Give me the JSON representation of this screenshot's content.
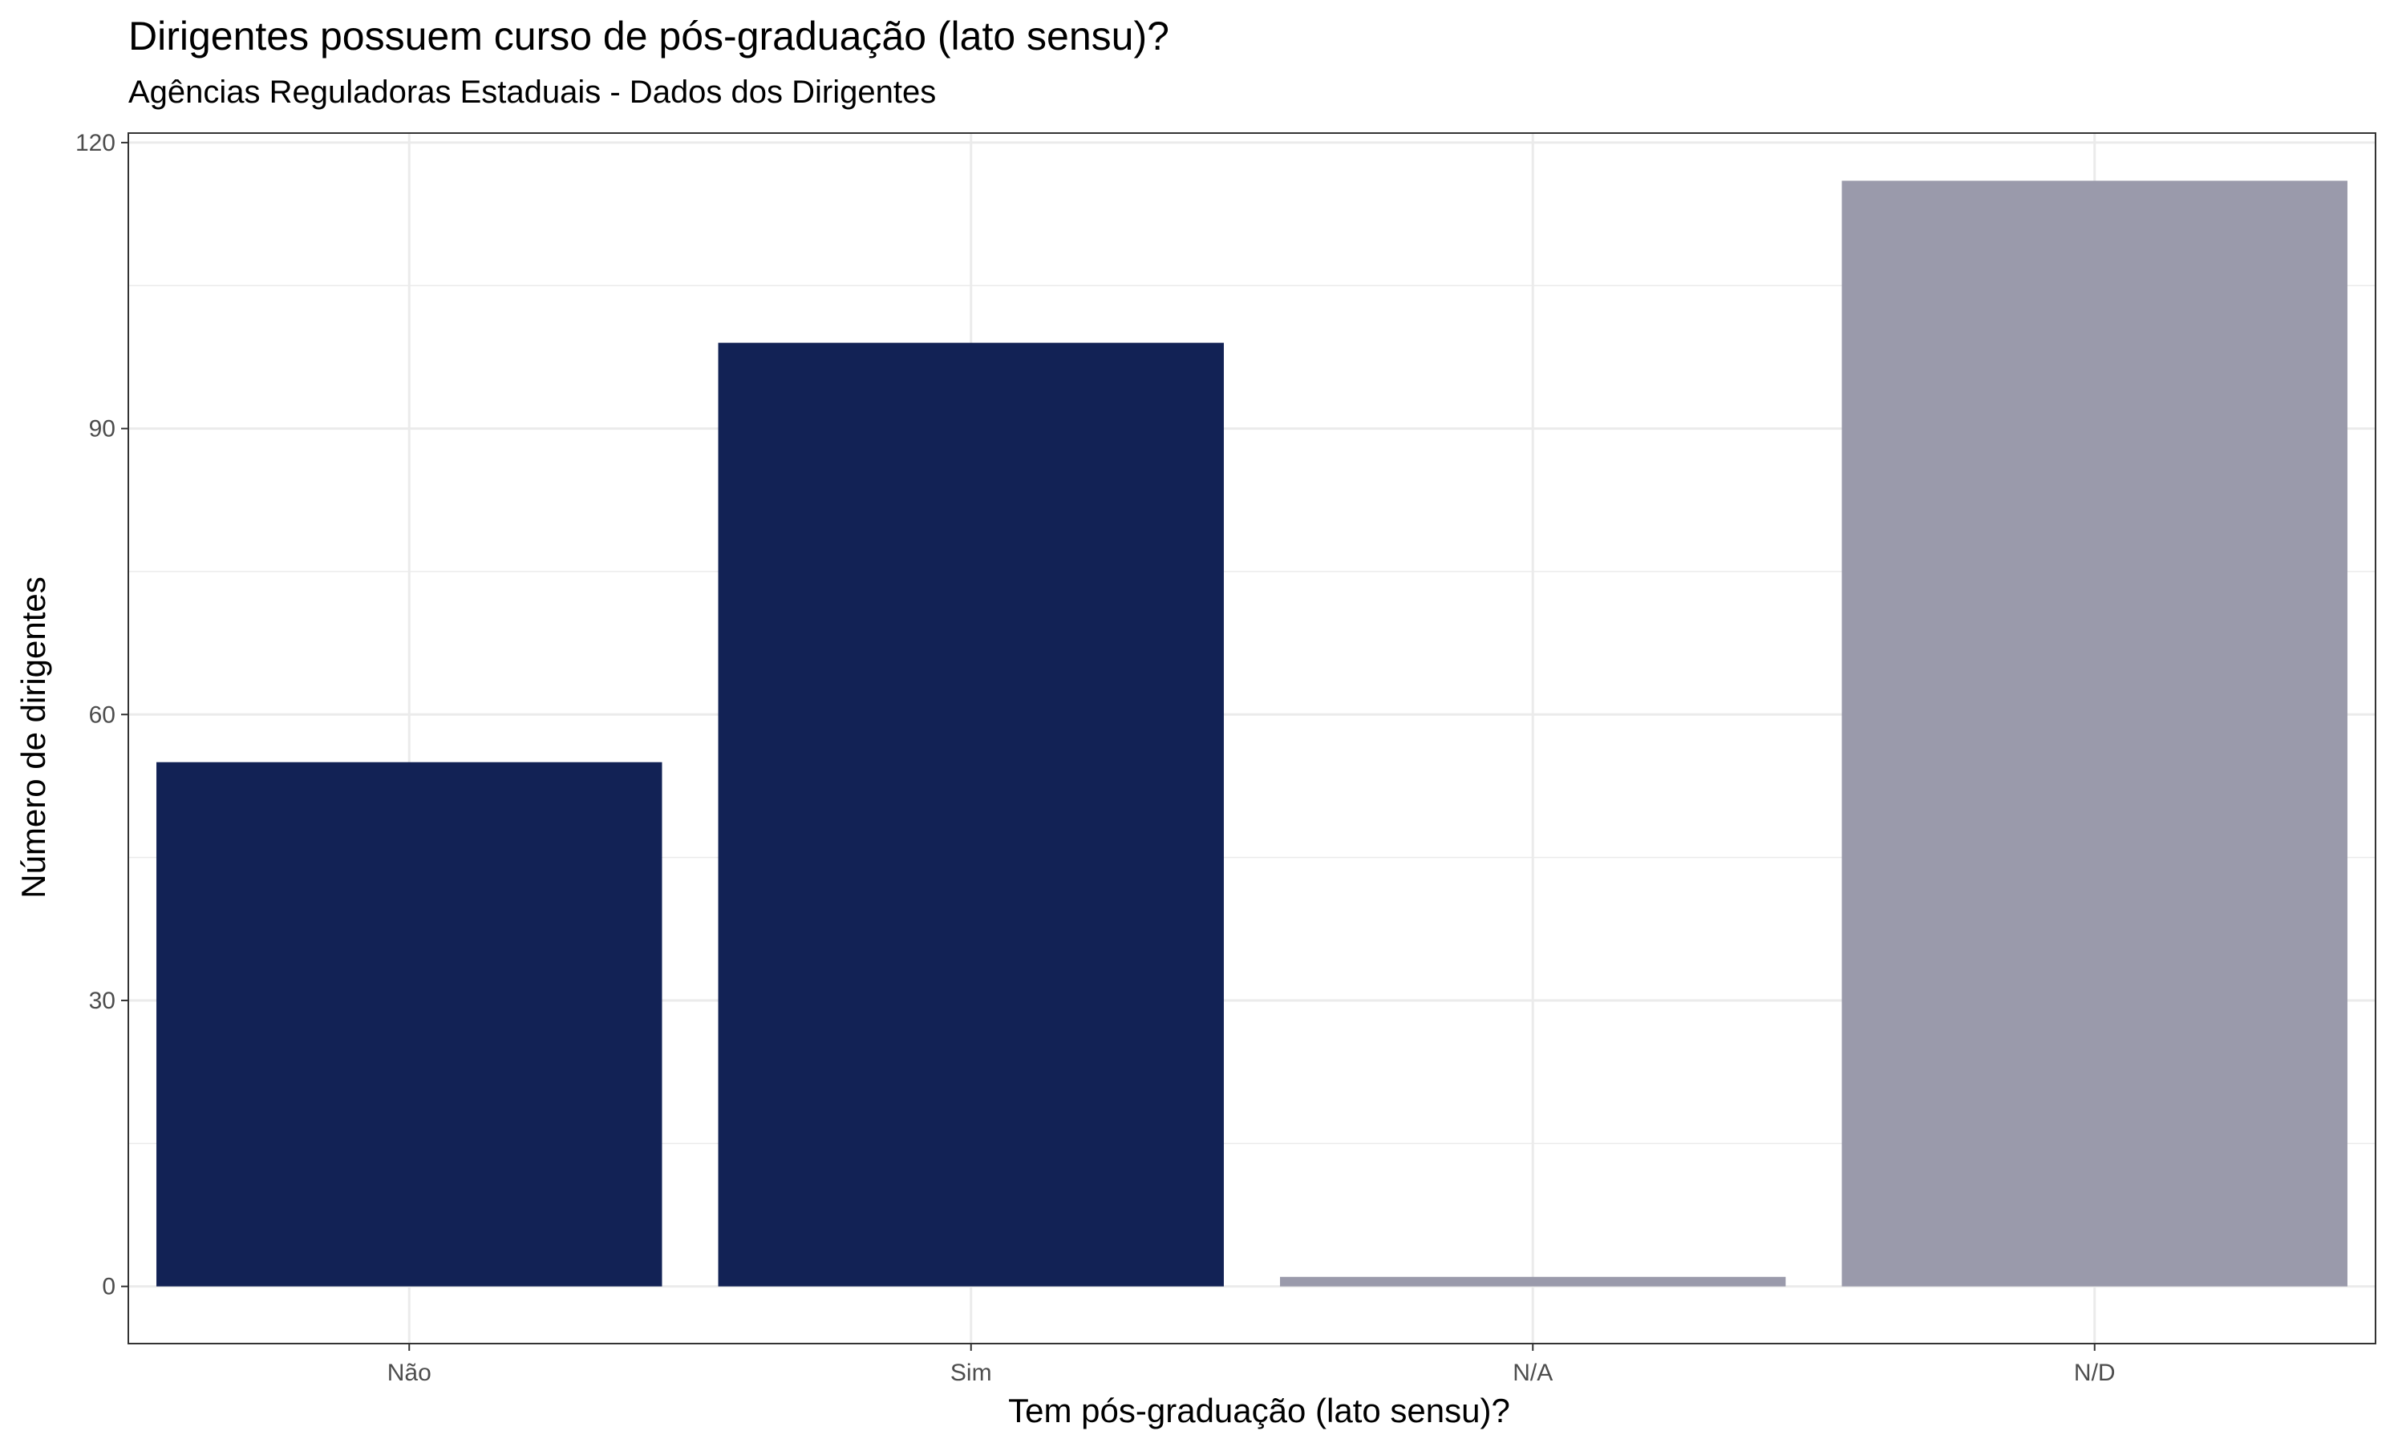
{
  "chart_data": {
    "type": "bar",
    "title": "Dirigentes possuem curso de pós-graduação (lato sensu)?",
    "subtitle": "Agências Reguladoras Estaduais - Dados dos Dirigentes",
    "xlabel": "Tem pós-graduação (lato sensu)?",
    "ylabel": "Número de dirigentes",
    "categories": [
      "Não",
      "Sim",
      "N/A",
      "N/D"
    ],
    "values": [
      55,
      99,
      1,
      116
    ],
    "bar_colors": [
      "#122255",
      "#122255",
      "#9a9aab",
      "#9a9aab"
    ],
    "ylim": [
      -6,
      121
    ],
    "yticks": [
      0,
      30,
      60,
      90,
      120
    ],
    "grid": true,
    "legend": "none",
    "background": "#ffffff",
    "grid_color": "#ebebeb",
    "panel_border_color": "#333333"
  }
}
